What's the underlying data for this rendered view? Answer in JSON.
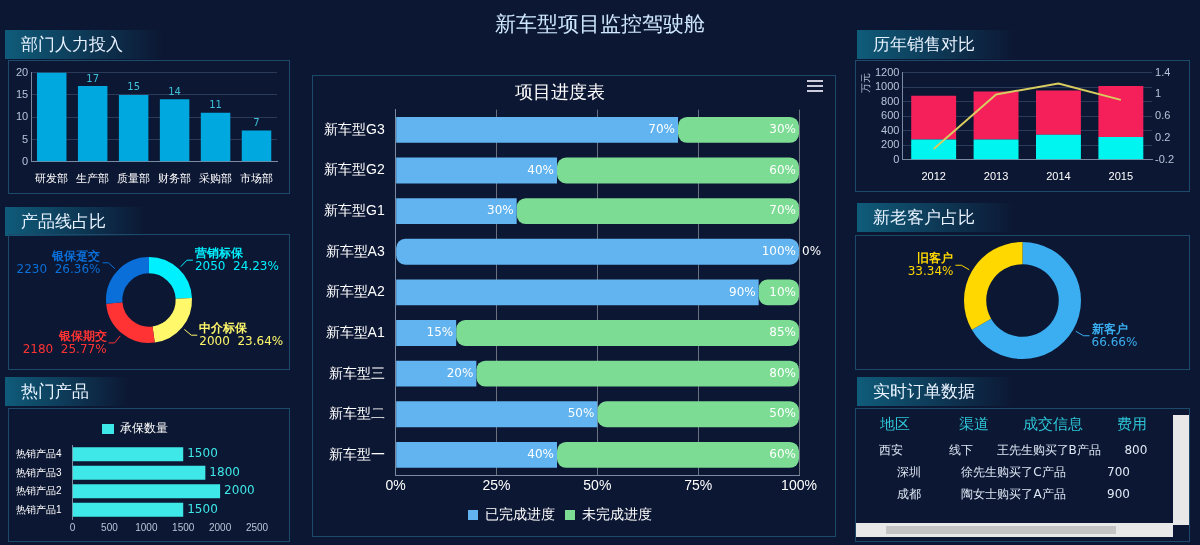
{
  "chart_data": [
    {
      "type": "other",
      "title": "新车型项目监控驾驶舱"
    },
    {
      "type": "bar",
      "title": "部门人力投入",
      "categories": [
        "研发部",
        "生产部",
        "质量部",
        "财务部",
        "采购部",
        "市场部"
      ],
      "series": [
        {
          "color": "#00a8e0",
          "values": [
            20,
            17,
            15,
            14,
            11,
            7
          ],
          "value_labels": [
            null,
            "17",
            "15",
            "14",
            "11",
            "7"
          ]
        }
      ],
      "ylim": [
        0,
        20
      ],
      "yticks": [
        0,
        5,
        10,
        15,
        20
      ],
      "grid": "y"
    },
    {
      "type": "donut",
      "title": "产品线占比",
      "categories": [
        "营销标保",
        "中介标保",
        "银保期交",
        "银保趸交"
      ],
      "values": [
        2050,
        2000,
        2180,
        2230
      ],
      "colors": [
        "#00f0ff",
        "#fff86a",
        "#ff3333",
        "#0a6fd8"
      ],
      "value_labels": [
        "2050  24.23%",
        "2000  23.64%",
        "2180  25.77%",
        "2230  26.36%"
      ]
    },
    {
      "type": "bar",
      "title": "热门产品",
      "orientation": "horizontal",
      "categories": [
        "热销产品4",
        "热销产品3",
        "热销产品2",
        "热销产品1"
      ],
      "series": [
        {
          "name": "承保数量",
          "color": "#3ee8e8",
          "values": [
            1500,
            1800,
            2000,
            1500
          ]
        }
      ],
      "xlim": [
        0,
        2500
      ],
      "xticks": [
        0,
        500,
        1000,
        1500,
        2000,
        2500
      ],
      "data_labels": true,
      "legend": "top"
    },
    {
      "type": "bar",
      "title": "项目进度表",
      "orientation": "horizontal",
      "stacked": true,
      "categories": [
        "新车型G3",
        "新车型G2",
        "新车型G1",
        "新车型A3",
        "新车型A2",
        "新车型A1",
        "新车型三",
        "新车型二",
        "新车型一"
      ],
      "series": [
        {
          "name": "已完成进度",
          "color": "#62b4f0",
          "values": [
            70,
            40,
            30,
            100,
            90,
            15,
            20,
            50,
            40
          ],
          "value_labels": [
            "70%",
            "40%",
            "30%",
            "100%",
            "90%",
            "15%",
            "20%",
            "50%",
            "40%"
          ]
        },
        {
          "name": "未完成进度",
          "color": "#7ddc94",
          "values": [
            30,
            60,
            70,
            0,
            10,
            85,
            80,
            50,
            60
          ],
          "value_labels": [
            "30%",
            "60%",
            "70%",
            "0%",
            "10%",
            "85%",
            "80%",
            "50%",
            "60%"
          ]
        }
      ],
      "xlim": [
        0,
        100
      ],
      "xticks": [
        {
          "value": 0,
          "label": "0%"
        },
        {
          "value": 25,
          "label": "25%"
        },
        {
          "value": 50,
          "label": "50%"
        },
        {
          "value": 75,
          "label": "75%"
        },
        {
          "value": 100,
          "label": "100%"
        }
      ],
      "grid": "x",
      "legend": "bottom"
    },
    {
      "type": "bar",
      "title": "历年销售对比",
      "ylabel": "万元",
      "stacked": true,
      "marker": "none",
      "categories": [
        "2012",
        "2013",
        "2014",
        "2015"
      ],
      "series": [
        {
          "color": "#00f5f0",
          "values": [
            280,
            280,
            345,
            315
          ]
        },
        {
          "color": "#f51f5a",
          "values": [
            600,
            660,
            610,
            700
          ]
        },
        {
          "type": "line",
          "axis": "y2",
          "color": "#d8cc60",
          "values": [
            0,
            1,
            1.2,
            0.9
          ]
        }
      ],
      "ylim": [
        0,
        1200
      ],
      "yticks": [
        0,
        200,
        400,
        600,
        800,
        1000,
        1200
      ],
      "y2lim": [
        -0.2,
        1.4
      ],
      "y2ticks": [
        -0.2,
        0.2,
        0.6,
        1,
        1.4
      ],
      "grid": "y"
    },
    {
      "type": "donut",
      "title": "新老客户占比",
      "categories": [
        "新客户",
        "旧客户"
      ],
      "values": [
        66.66,
        33.34
      ],
      "colors": [
        "#3aaef0",
        "#ffd800"
      ],
      "value_labels": [
        "66.66%",
        "33.34%"
      ]
    },
    {
      "type": "other",
      "title": "实时订单数据",
      "annotations": [
        "地区  渠道  成交信息  费用",
        "西安  线下  王先生购买了B产品  800",
        "深圳  徐先生购买了C产品  700",
        "成都  陶女士购买了A产品  900"
      ]
    }
  ]
}
